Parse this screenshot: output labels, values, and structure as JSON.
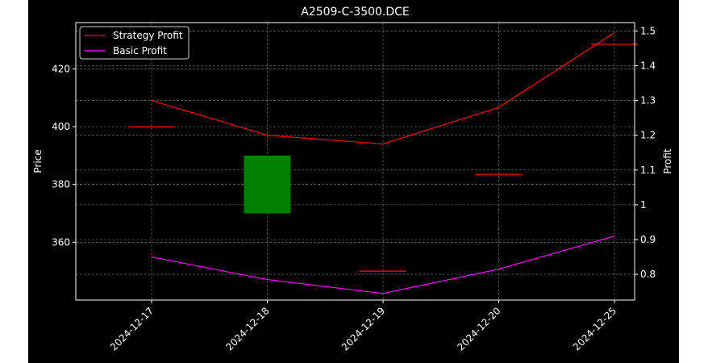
{
  "chart_data": {
    "type": "candlestick-with-lines",
    "title": "A2509-C-3500.DCE",
    "xlabel": "",
    "ylabel_left": "Price",
    "ylabel_right": "Profit",
    "categories": [
      "2024-12-17",
      "2024-12-18",
      "2024-12-19",
      "2024-12-20",
      "2024-12-25"
    ],
    "left_axis": {
      "ylim": [
        340,
        436
      ],
      "ticks": [
        360,
        380,
        400,
        420
      ]
    },
    "right_axis": {
      "ylim": [
        0.726,
        1.524
      ],
      "ticks": [
        0.8,
        0.9,
        1.0,
        1.1,
        1.2,
        1.3,
        1.4,
        1.5
      ]
    },
    "candles": [
      {
        "date": "2024-12-17",
        "open": 400.0,
        "close": 400.0,
        "high": 400.0,
        "low": 400.0,
        "color": "#ff0000"
      },
      {
        "date": "2024-12-18",
        "open": 370.0,
        "close": 390.0,
        "high": 390.0,
        "low": 370.0,
        "color": "#008000"
      },
      {
        "date": "2024-12-19",
        "open": 350.0,
        "close": 350.0,
        "high": 350.0,
        "low": 350.0,
        "color": "#ff0000"
      },
      {
        "date": "2024-12-20",
        "open": 383.5,
        "close": 383.5,
        "high": 383.5,
        "low": 383.5,
        "color": "#ff0000"
      },
      {
        "date": "2024-12-25",
        "open": 428.5,
        "close": 428.5,
        "high": 428.5,
        "low": 428.5,
        "color": "#ff0000"
      }
    ],
    "series": [
      {
        "name": "Strategy Profit",
        "color": "#ff0000",
        "axis": "right",
        "values": [
          1.3,
          1.2,
          1.175,
          1.28,
          1.495
        ]
      },
      {
        "name": "Basic Profit",
        "color": "#ff00ff",
        "axis": "right",
        "values": [
          0.85,
          0.785,
          0.745,
          0.815,
          0.91
        ]
      }
    ],
    "grid": true,
    "legend_position": "top-left",
    "background": "#000000",
    "foreground": "#ffffff"
  }
}
